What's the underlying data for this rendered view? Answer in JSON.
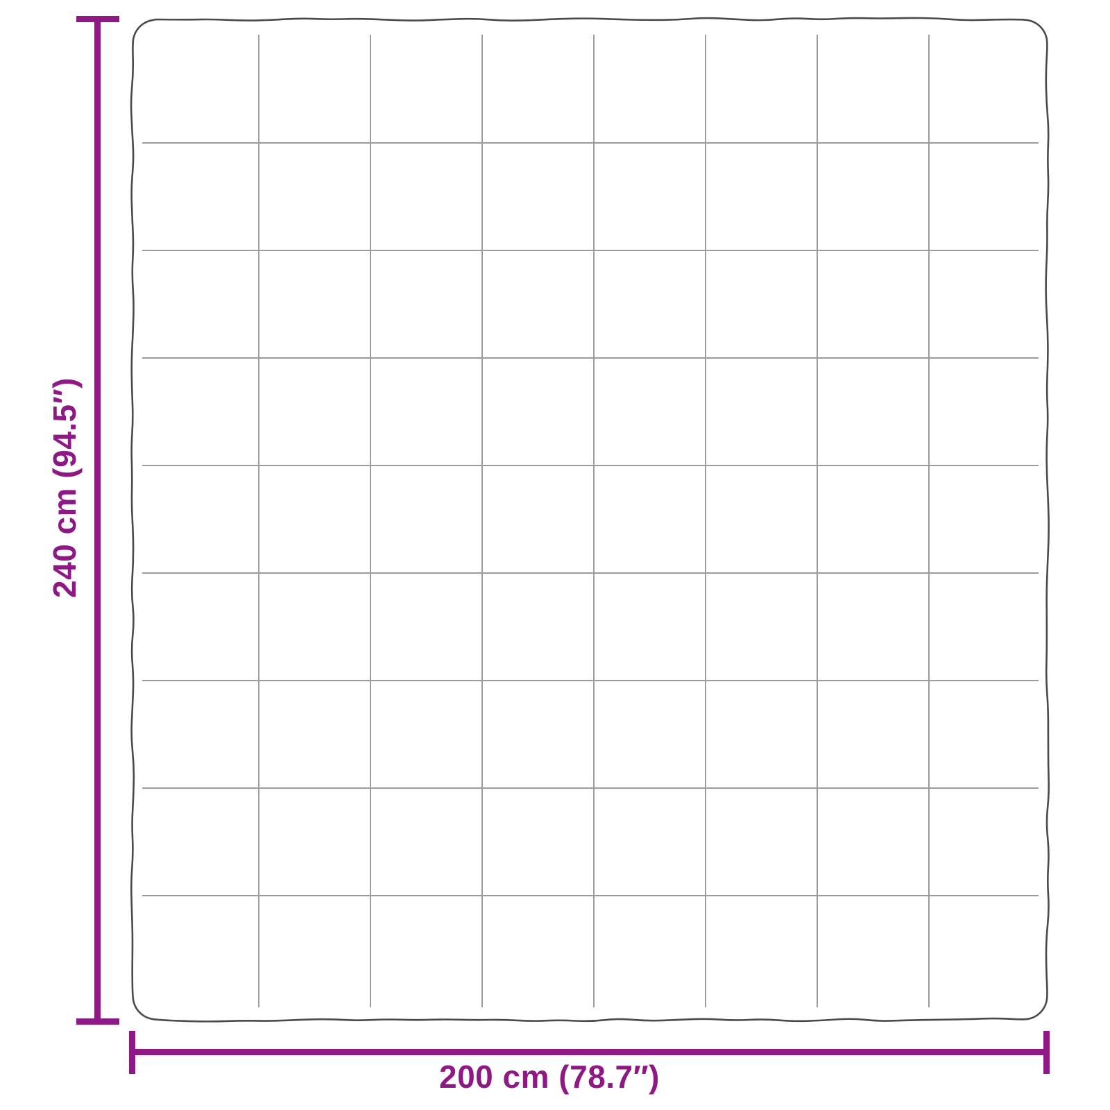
{
  "figure": {
    "type": "product-dimension-diagram",
    "subject": "quilted-blanket-top-view"
  },
  "dimensions": {
    "height_label": "240 cm (94.5″)",
    "width_label": "200 cm (78.7″)",
    "height_cm": 240,
    "height_inches": 94.5,
    "width_cm": 200,
    "width_inches": 78.7
  },
  "blanket": {
    "grid_columns": 8,
    "grid_rows": 9
  },
  "colors": {
    "accent": "#8d1a84",
    "outline": "#4a4a4a",
    "grid_line": "#949494",
    "background": "#ffffff"
  }
}
